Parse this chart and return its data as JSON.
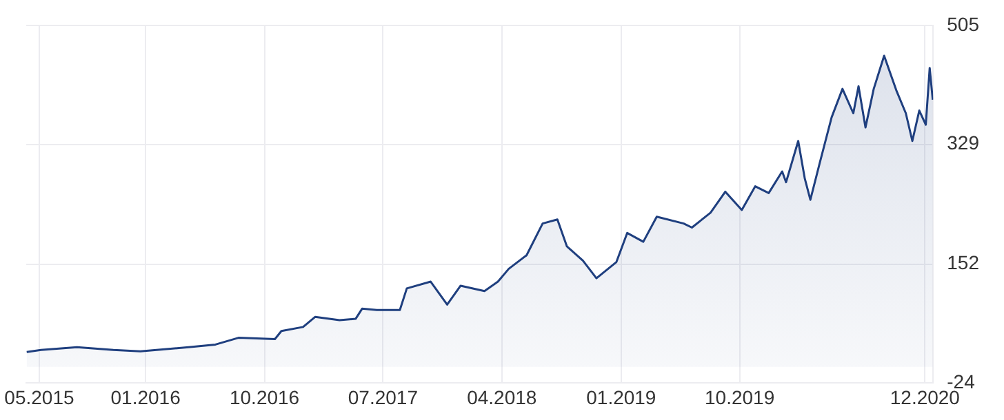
{
  "chart_data": {
    "type": "area",
    "x": [
      "2015-04-02",
      "2015-05-05",
      "2015-07-27",
      "2015-10-19",
      "2015-12-20",
      "2016-04-09",
      "2016-06-10",
      "2016-08-02",
      "2016-10-25",
      "2016-11-09",
      "2016-12-29",
      "2017-01-26",
      "2017-03-23",
      "2017-04-29",
      "2017-05-14",
      "2017-06-17",
      "2017-08-09",
      "2017-08-25",
      "2017-10-19",
      "2017-11-26",
      "2017-12-27",
      "2018-02-20",
      "2018-03-23",
      "2018-04-17",
      "2018-05-28",
      "2018-07-04",
      "2018-08-07",
      "2018-08-29",
      "2018-10-05",
      "2018-11-05",
      "2018-12-21",
      "2019-01-15",
      "2019-02-21",
      "2019-03-24",
      "2019-05-25",
      "2019-06-13",
      "2019-07-26",
      "2019-08-29",
      "2019-10-06",
      "2019-11-06",
      "2019-12-07",
      "2020-01-07",
      "2020-01-16",
      "2020-02-13",
      "2020-02-28",
      "2020-03-12",
      "2020-04-02",
      "2020-04-30",
      "2020-05-25",
      "2020-06-19",
      "2020-07-01",
      "2020-07-17",
      "2020-08-05",
      "2020-08-29",
      "2020-09-26",
      "2020-10-18",
      "2020-11-02",
      "2020-11-18",
      "2020-12-03",
      "2020-12-12",
      "2020-12-19"
    ],
    "series": [
      {
        "color": "#1f3f7f",
        "values": [
          22,
          25,
          29,
          25,
          23,
          29,
          33,
          43,
          41,
          53,
          59,
          74,
          69,
          71,
          86,
          84,
          84,
          116,
          126,
          92,
          120,
          112,
          126,
          145,
          165,
          212,
          218,
          178,
          157,
          131,
          155,
          198,
          185,
          222,
          212,
          206,
          228,
          259,
          232,
          267,
          257,
          289,
          273,
          334,
          279,
          247,
          300,
          369,
          411,
          375,
          415,
          354,
          411,
          460,
          409,
          375,
          334,
          379,
          358,
          442,
          395
        ]
      }
    ],
    "xlim": [
      "2015-04-01",
      "2020-12-20"
    ],
    "xticks": [
      {
        "value": "2015-05-01",
        "label": "05.2015"
      },
      {
        "value": "2016-01-01",
        "label": "01.2016"
      },
      {
        "value": "2016-10-01",
        "label": "10.2016"
      },
      {
        "value": "2017-07-01",
        "label": "07.2017"
      },
      {
        "value": "2018-04-01",
        "label": "04.2018"
      },
      {
        "value": "2019-01-01",
        "label": "01.2019"
      },
      {
        "value": "2019-10-01",
        "label": "10.2019"
      },
      {
        "value": "2020-12-01",
        "label": "12.2020"
      }
    ],
    "ylim": [
      -24,
      505
    ],
    "yticks": [
      -24,
      152,
      329,
      505
    ],
    "grid": true,
    "legend": false,
    "marker": "none"
  }
}
